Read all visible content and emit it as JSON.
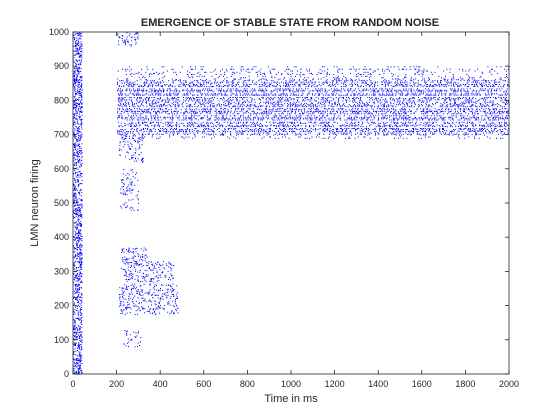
{
  "chart_data": {
    "type": "scatter",
    "title": "EMERGENCE OF STABLE STATE FROM RANDOM NOISE",
    "xlabel": "Time in ms",
    "ylabel": "LMN neuron firing",
    "xlim": [
      0,
      2000
    ],
    "ylim": [
      0,
      1000
    ],
    "xticks": [
      0,
      200,
      400,
      600,
      800,
      1000,
      1200,
      1400,
      1600,
      1800,
      2000
    ],
    "yticks": [
      0,
      100,
      200,
      300,
      400,
      500,
      600,
      700,
      800,
      900,
      1000
    ],
    "grid": false,
    "marker_color": "#0000ff",
    "series": [
      {
        "description": "random initial noise, all neurons firing",
        "x_range": [
          0,
          40
        ],
        "y_range": [
          0,
          1000
        ],
        "density": 0.9
      },
      {
        "description": "transient clusters after input",
        "clusters": [
          {
            "x_range": [
              200,
              300
            ],
            "y_range": [
              960,
              1000
            ],
            "density": 0.3
          },
          {
            "x_range": [
              210,
              320
            ],
            "y_range": [
              620,
              700
            ],
            "density": 0.25
          },
          {
            "x_range": [
              215,
              300
            ],
            "y_range": [
              480,
              600
            ],
            "density": 0.2
          },
          {
            "x_range": [
              220,
              340
            ],
            "y_range": [
              330,
              370
            ],
            "density": 0.35
          },
          {
            "x_range": [
              220,
              460
            ],
            "y_range": [
              270,
              330
            ],
            "density": 0.3
          },
          {
            "x_range": [
              210,
              480
            ],
            "y_range": [
              175,
              265
            ],
            "density": 0.3
          },
          {
            "x_range": [
              230,
              310
            ],
            "y_range": [
              80,
              130
            ],
            "density": 0.2
          }
        ]
      },
      {
        "description": "stable bump of activity",
        "x_range": [
          200,
          2000
        ],
        "y_range": [
          690,
          900
        ],
        "core_y_range": [
          700,
          860
        ],
        "density": 0.55
      }
    ]
  }
}
